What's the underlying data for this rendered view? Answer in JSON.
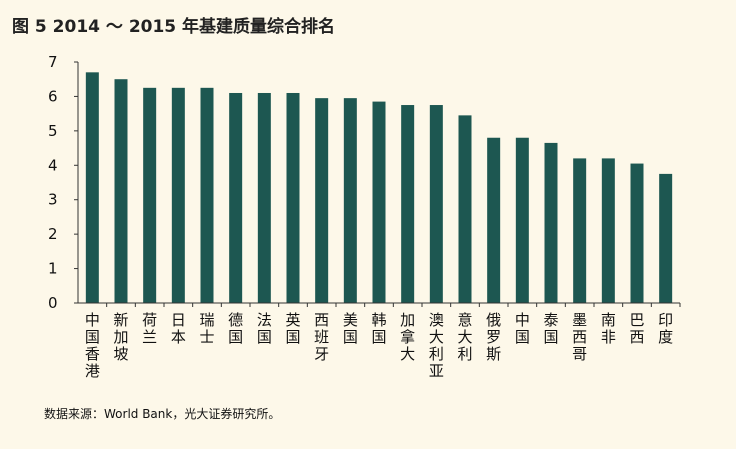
{
  "figure": {
    "title": "图 5  2014 ～ 2015 年基建质量综合排名",
    "source": "数据来源：World Bank，光大证券研究所。"
  },
  "colors": {
    "bar": "#1d5751",
    "axis": "#333333",
    "background": "#fdf8e9"
  },
  "chart_data": {
    "type": "bar",
    "title": "图 5  2014 ～ 2015 年基建质量综合排名",
    "xlabel": "",
    "ylabel": "",
    "ylim": [
      0,
      7
    ],
    "yticks": [
      0,
      1,
      2,
      3,
      4,
      5,
      6,
      7
    ],
    "grid": false,
    "categories": [
      "中国香港",
      "新加坡",
      "荷兰",
      "日本",
      "瑞士",
      "德国",
      "法国",
      "英国",
      "西班牙",
      "美国",
      "韩国",
      "加拿大",
      "澳大利亚",
      "意大利",
      "俄罗斯",
      "中国",
      "泰国",
      "墨西哥",
      "南非",
      "巴西",
      "印度"
    ],
    "values": [
      6.7,
      6.5,
      6.25,
      6.25,
      6.25,
      6.1,
      6.1,
      6.1,
      5.95,
      5.95,
      5.85,
      5.75,
      5.75,
      5.45,
      4.8,
      4.8,
      4.65,
      4.2,
      4.2,
      4.05,
      3.75
    ]
  }
}
